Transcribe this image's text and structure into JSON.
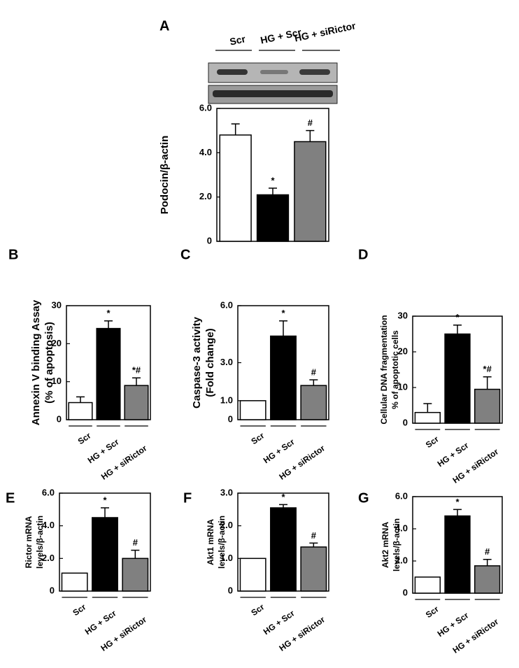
{
  "chart_data": [
    {
      "type": "bar",
      "panel_label": "A",
      "ylabel": [
        "Podocin/β-actin"
      ],
      "categories": [
        "Scr",
        "HG + Scr",
        "HG + siRictor"
      ],
      "values": [
        4.8,
        2.1,
        4.5
      ],
      "errors": [
        0.5,
        0.3,
        0.5
      ],
      "annotations": [
        null,
        "*",
        "#"
      ],
      "colors": [
        "#ffffff",
        "#000000",
        "#808080"
      ],
      "ylim": [
        0,
        6
      ],
      "yticks": [
        0,
        {
          "value": 2,
          "label": "2.0"
        },
        {
          "value": 4,
          "label": "4.0"
        },
        {
          "value": 6,
          "label": "6.0"
        }
      ]
    },
    {
      "type": "bar",
      "panel_label": "B",
      "ylabel": [
        "Annexin V binding Assay",
        "(% of apoptosis)"
      ],
      "categories": [
        "Scr",
        "HG + Scr",
        "HG + siRictor"
      ],
      "values": [
        4.5,
        24,
        9
      ],
      "errors": [
        1.5,
        2,
        2
      ],
      "annotations": [
        null,
        "*",
        "*#"
      ],
      "colors": [
        "#ffffff",
        "#000000",
        "#808080"
      ],
      "ylim": [
        0,
        30
      ],
      "yticks": [
        0,
        10,
        20,
        30
      ]
    },
    {
      "type": "bar",
      "panel_label": "C",
      "ylabel": [
        "Caspase-3 activity",
        "(Fold change)"
      ],
      "categories": [
        "Scr",
        "HG + Scr",
        "HG + siRictor"
      ],
      "values": [
        1.0,
        4.4,
        1.8
      ],
      "errors": [
        0,
        0.8,
        0.3
      ],
      "annotations": [
        null,
        "*",
        "#"
      ],
      "colors": [
        "#ffffff",
        "#000000",
        "#808080"
      ],
      "ylim": [
        0,
        6
      ],
      "yticks": [
        0,
        {
          "value": 1,
          "label": "1.0"
        },
        {
          "value": 3,
          "label": "3.0"
        },
        {
          "value": 6,
          "label": "6.0"
        }
      ]
    },
    {
      "type": "bar",
      "panel_label": "D",
      "ylabel": [
        "Cellular DNA fragmentation",
        "% of apoptotic cells"
      ],
      "categories": [
        "Scr",
        "HG + Scr",
        "HG + siRictor"
      ],
      "values": [
        3,
        25,
        9.5
      ],
      "errors": [
        2.5,
        2.5,
        3.5
      ],
      "annotations": [
        null,
        "*",
        "*#"
      ],
      "colors": [
        "#ffffff",
        "#000000",
        "#808080"
      ],
      "ylim": [
        0,
        30
      ],
      "yticks": [
        0,
        10,
        20,
        30
      ]
    },
    {
      "type": "bar",
      "panel_label": "E",
      "ylabel": [
        "Rictor mRNA",
        "levels/β-actin"
      ],
      "categories": [
        "Scr",
        "HG + Scr",
        "HG + siRictor"
      ],
      "values": [
        1.1,
        4.5,
        2.0
      ],
      "errors": [
        0,
        0.6,
        0.5
      ],
      "annotations": [
        null,
        "*",
        "#"
      ],
      "colors": [
        "#ffffff",
        "#000000",
        "#808080"
      ],
      "ylim": [
        0,
        6
      ],
      "yticks": [
        0,
        {
          "value": 2,
          "label": "2.0"
        },
        {
          "value": 4,
          "label": "4.0"
        },
        {
          "value": 6,
          "label": "6.0"
        }
      ]
    },
    {
      "type": "bar",
      "panel_label": "F",
      "ylabel": [
        "Akt1 mRNA",
        "levels/β-actin"
      ],
      "categories": [
        "Scr",
        "HG + Scr",
        "HG + siRictor"
      ],
      "values": [
        1.0,
        2.55,
        1.35
      ],
      "errors": [
        0,
        0.1,
        0.12
      ],
      "annotations": [
        null,
        "*",
        "#"
      ],
      "colors": [
        "#ffffff",
        "#000000",
        "#808080"
      ],
      "ylim": [
        0,
        3
      ],
      "yticks": [
        0,
        {
          "value": 1,
          "label": "1.0"
        },
        {
          "value": 2,
          "label": "2.0"
        },
        {
          "value": 3,
          "label": "3.0"
        }
      ]
    },
    {
      "type": "bar",
      "panel_label": "G",
      "ylabel": [
        "Akt2 mRNA",
        "levels/β-actin"
      ],
      "categories": [
        "Scr",
        "HG + Scr",
        "HG + siRictor"
      ],
      "values": [
        1.0,
        4.8,
        1.7
      ],
      "errors": [
        0,
        0.4,
        0.4
      ],
      "annotations": [
        null,
        "*",
        "#"
      ],
      "colors": [
        "#ffffff",
        "#000000",
        "#808080"
      ],
      "ylim": [
        0,
        6
      ],
      "yticks": [
        0,
        {
          "value": 2,
          "label": "2.0"
        },
        {
          "value": 4,
          "label": "4.0"
        },
        {
          "value": 6,
          "label": "6.0"
        }
      ]
    }
  ]
}
